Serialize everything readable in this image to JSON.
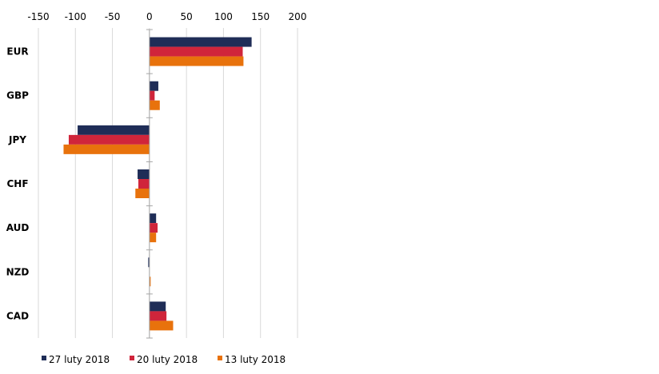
{
  "chart_data": {
    "type": "bar",
    "orientation": "horizontal",
    "categories": [
      "EUR",
      "GBP",
      "JPY",
      "CHF",
      "AUD",
      "NZD",
      "CAD"
    ],
    "series": [
      {
        "name": "27 luty 2018",
        "color": "#1f2d57",
        "values": [
          138,
          12,
          -97,
          -16,
          9,
          -1,
          22
        ]
      },
      {
        "name": "20 luty 2018",
        "color": "#d0253b",
        "values": [
          126,
          7,
          -109,
          -15,
          11,
          0,
          23
        ]
      },
      {
        "name": "13 luty 2018",
        "color": "#e8720c",
        "values": [
          127,
          14,
          -116,
          -19,
          9,
          1,
          32
        ]
      }
    ],
    "xlim": [
      -150,
      200
    ],
    "xticks": [
      -150,
      -100,
      -50,
      0,
      50,
      100,
      150,
      200
    ],
    "xtick_labels": [
      "-150",
      "-100",
      "-50",
      "0",
      "50",
      "100",
      "150",
      "200"
    ],
    "grid": true,
    "legend_position": "bottom"
  }
}
